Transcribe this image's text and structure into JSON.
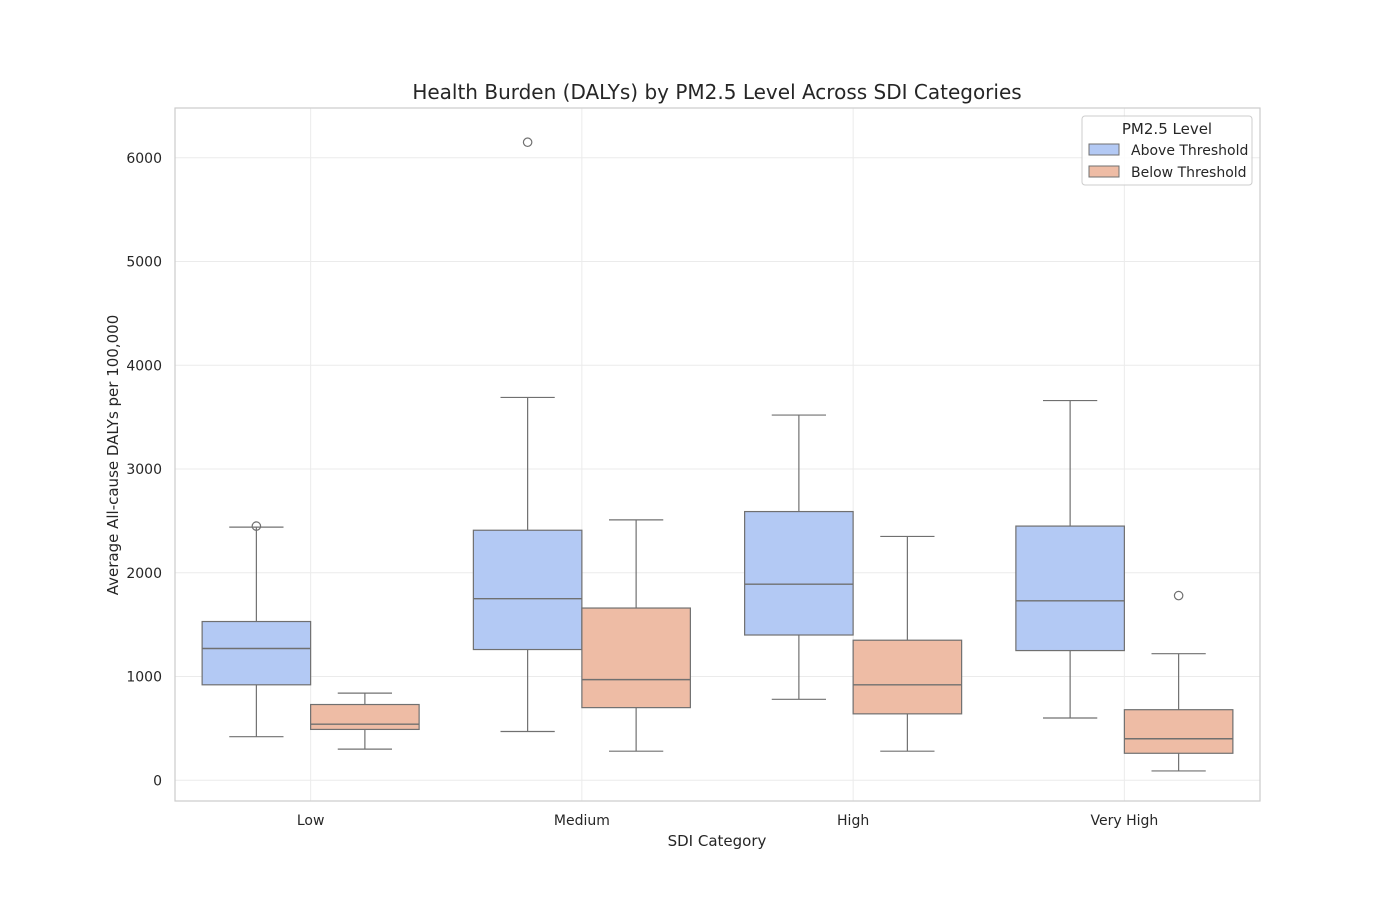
{
  "chart_data": {
    "type": "box",
    "title": "Health Burden (DALYs) by PM2.5 Level Across SDI Categories",
    "xlabel": "SDI Category",
    "ylabel": "Average All-cause DALYs per 100,000",
    "categories": [
      "Low",
      "Medium",
      "High",
      "Very High"
    ],
    "ylim": [
      -200,
      6480
    ],
    "yticks": [
      0,
      1000,
      2000,
      3000,
      4000,
      5000,
      6000
    ],
    "grid": true,
    "legend": {
      "title": "PM2.5 Level",
      "position": "top-right"
    },
    "series": [
      {
        "name": "Above Threshold",
        "color": "#b3c9f4",
        "boxes": [
          {
            "whisker_low": 420,
            "q1": 920,
            "median": 1270,
            "q3": 1530,
            "whisker_high": 2440,
            "outliers": [
              2450
            ]
          },
          {
            "whisker_low": 470,
            "q1": 1260,
            "median": 1750,
            "q3": 2410,
            "whisker_high": 3690,
            "outliers": [
              6150
            ]
          },
          {
            "whisker_low": 780,
            "q1": 1400,
            "median": 1890,
            "q3": 2590,
            "whisker_high": 3520,
            "outliers": []
          },
          {
            "whisker_low": 600,
            "q1": 1250,
            "median": 1730,
            "q3": 2450,
            "whisker_high": 3660,
            "outliers": []
          }
        ]
      },
      {
        "name": "Below Threshold",
        "color": "#eebca5",
        "boxes": [
          {
            "whisker_low": 300,
            "q1": 490,
            "median": 540,
            "q3": 730,
            "whisker_high": 840,
            "outliers": []
          },
          {
            "whisker_low": 280,
            "q1": 700,
            "median": 970,
            "q3": 1660,
            "whisker_high": 2510,
            "outliers": []
          },
          {
            "whisker_low": 280,
            "q1": 640,
            "median": 920,
            "q3": 1350,
            "whisker_high": 2350,
            "outliers": []
          },
          {
            "whisker_low": 90,
            "q1": 260,
            "median": 400,
            "q3": 680,
            "whisker_high": 1220,
            "outliers": [
              1780
            ]
          }
        ]
      }
    ]
  }
}
